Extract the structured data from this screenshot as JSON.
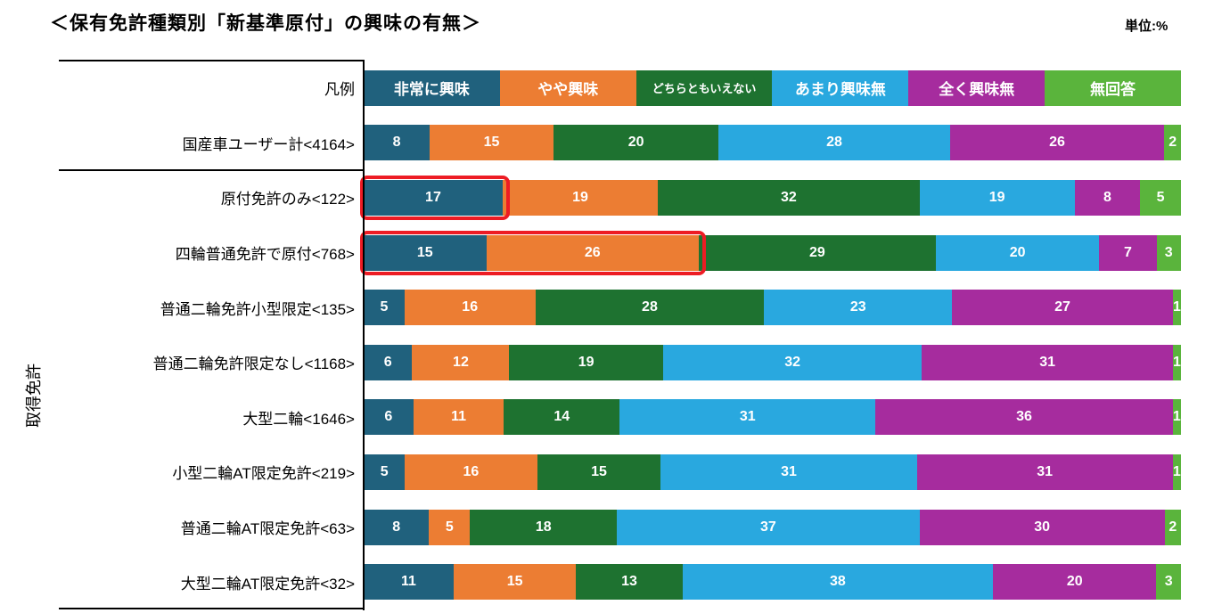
{
  "title": "＜保有免許種類別「新基準原付」の興味の有無＞",
  "unit_label": "単位:%",
  "axis_group_label": "取得免許",
  "legend_row_label": "凡例",
  "highlight_color": "#ED1C24",
  "chart_data": {
    "type": "bar",
    "stacked": true,
    "orientation": "horizontal",
    "unit": "%",
    "legend_position": "top-row",
    "series_labels": [
      "非常に興味",
      "やや興味",
      "どちらともいえない",
      "あまり興味無",
      "全く興味無",
      "無回答"
    ],
    "series_colors": [
      "#20617D",
      "#EC7D33",
      "#1E7230",
      "#29A8DF",
      "#A62C9E",
      "#5AB43C"
    ],
    "rows": [
      {
        "label": "国産車ユーザー計<4164>",
        "group": "total",
        "values": [
          8,
          15,
          20,
          28,
          26,
          2
        ],
        "highlight_segment_count": 0
      },
      {
        "label": "原付免許のみ<122>",
        "group": "取得免許",
        "values": [
          17,
          19,
          32,
          19,
          8,
          5
        ],
        "highlight_segment_count": 1
      },
      {
        "label": "四輪普通免許で原付<768>",
        "group": "取得免許",
        "values": [
          15,
          26,
          29,
          20,
          7,
          3
        ],
        "highlight_segment_count": 2
      },
      {
        "label": "普通二輪免許小型限定<135>",
        "group": "取得免許",
        "values": [
          5,
          16,
          28,
          23,
          27,
          1
        ],
        "highlight_segment_count": 0
      },
      {
        "label": "普通二輪免許限定なし<1168>",
        "group": "取得免許",
        "values": [
          6,
          12,
          19,
          32,
          31,
          1
        ],
        "highlight_segment_count": 0
      },
      {
        "label": "大型二輪<1646>",
        "group": "取得免許",
        "values": [
          6,
          11,
          14,
          31,
          36,
          1
        ],
        "highlight_segment_count": 0
      },
      {
        "label": "小型二輪AT限定免許<219>",
        "group": "取得免許",
        "values": [
          5,
          16,
          15,
          31,
          31,
          1
        ],
        "highlight_segment_count": 0
      },
      {
        "label": "普通二輪AT限定免許<63>",
        "group": "取得免許",
        "values": [
          8,
          5,
          18,
          37,
          30,
          2
        ],
        "highlight_segment_count": 0
      },
      {
        "label": "大型二輪AT限定免許<32>",
        "group": "取得免許",
        "values": [
          11,
          15,
          13,
          38,
          20,
          3
        ],
        "highlight_segment_count": 0
      }
    ]
  }
}
